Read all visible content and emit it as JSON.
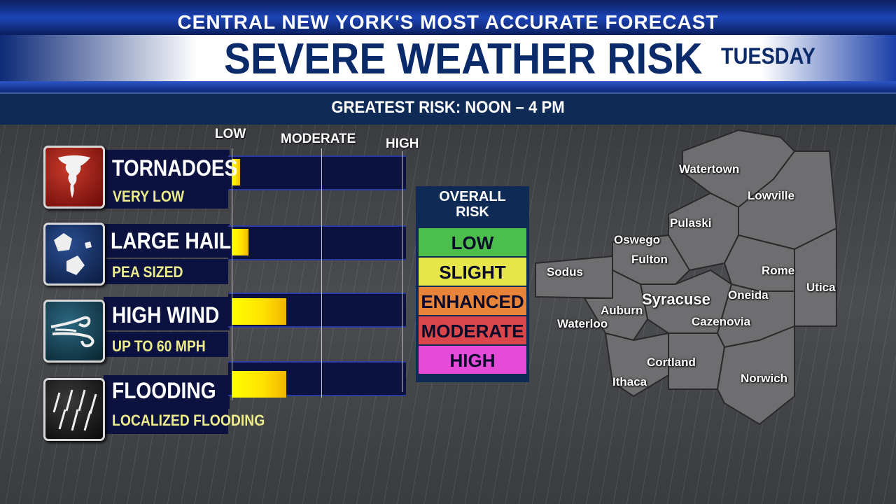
{
  "header": {
    "top_banner": "CENTRAL NEW YORK'S MOST ACCURATE FORECAST",
    "title": "SEVERE WEATHER RISK",
    "day": "TUESDAY",
    "subtitle": "GREATEST RISK: NOON – 4 PM"
  },
  "scale": {
    "low": "LOW",
    "moderate": "MODERATE",
    "high": "HIGH"
  },
  "risks": [
    {
      "name": "TORNADOES",
      "detail": "VERY LOW",
      "icon": "tornado-icon",
      "level": 0.05
    },
    {
      "name": "LARGE HAIL",
      "detail": "PEA SIZED",
      "icon": "hail-icon",
      "level": 0.1
    },
    {
      "name": "HIGH WIND",
      "detail": "UP TO 60 MPH",
      "icon": "wind-icon",
      "level": 0.32
    },
    {
      "name": "FLOODING",
      "detail": "LOCALIZED FLOODING",
      "icon": "rain-icon",
      "level": 0.32
    }
  ],
  "overall": {
    "title_line1": "OVERALL",
    "title_line2": "RISK",
    "levels": [
      {
        "label": "LOW",
        "color": "#4cbe4c"
      },
      {
        "label": "SLIGHT",
        "color": "#e6e64a"
      },
      {
        "label": "ENHANCED",
        "color": "#e8843a"
      },
      {
        "label": "MODERATE",
        "color": "#d9474a"
      },
      {
        "label": "HIGH",
        "color": "#e64ad9"
      }
    ]
  },
  "map": {
    "cities": [
      "Watertown",
      "Lowville",
      "Pulaski",
      "Oswego",
      "Fulton",
      "Sodus",
      "Rome",
      "Utica",
      "Oneida",
      "Syracuse",
      "Auburn",
      "Waterloo",
      "Cazenovia",
      "Cortland",
      "Ithaca",
      "Norwich"
    ]
  },
  "colors": {
    "accent": "#0b2a6a",
    "bar_fill": "#ffff00",
    "county_fill": "#6e6e70"
  }
}
